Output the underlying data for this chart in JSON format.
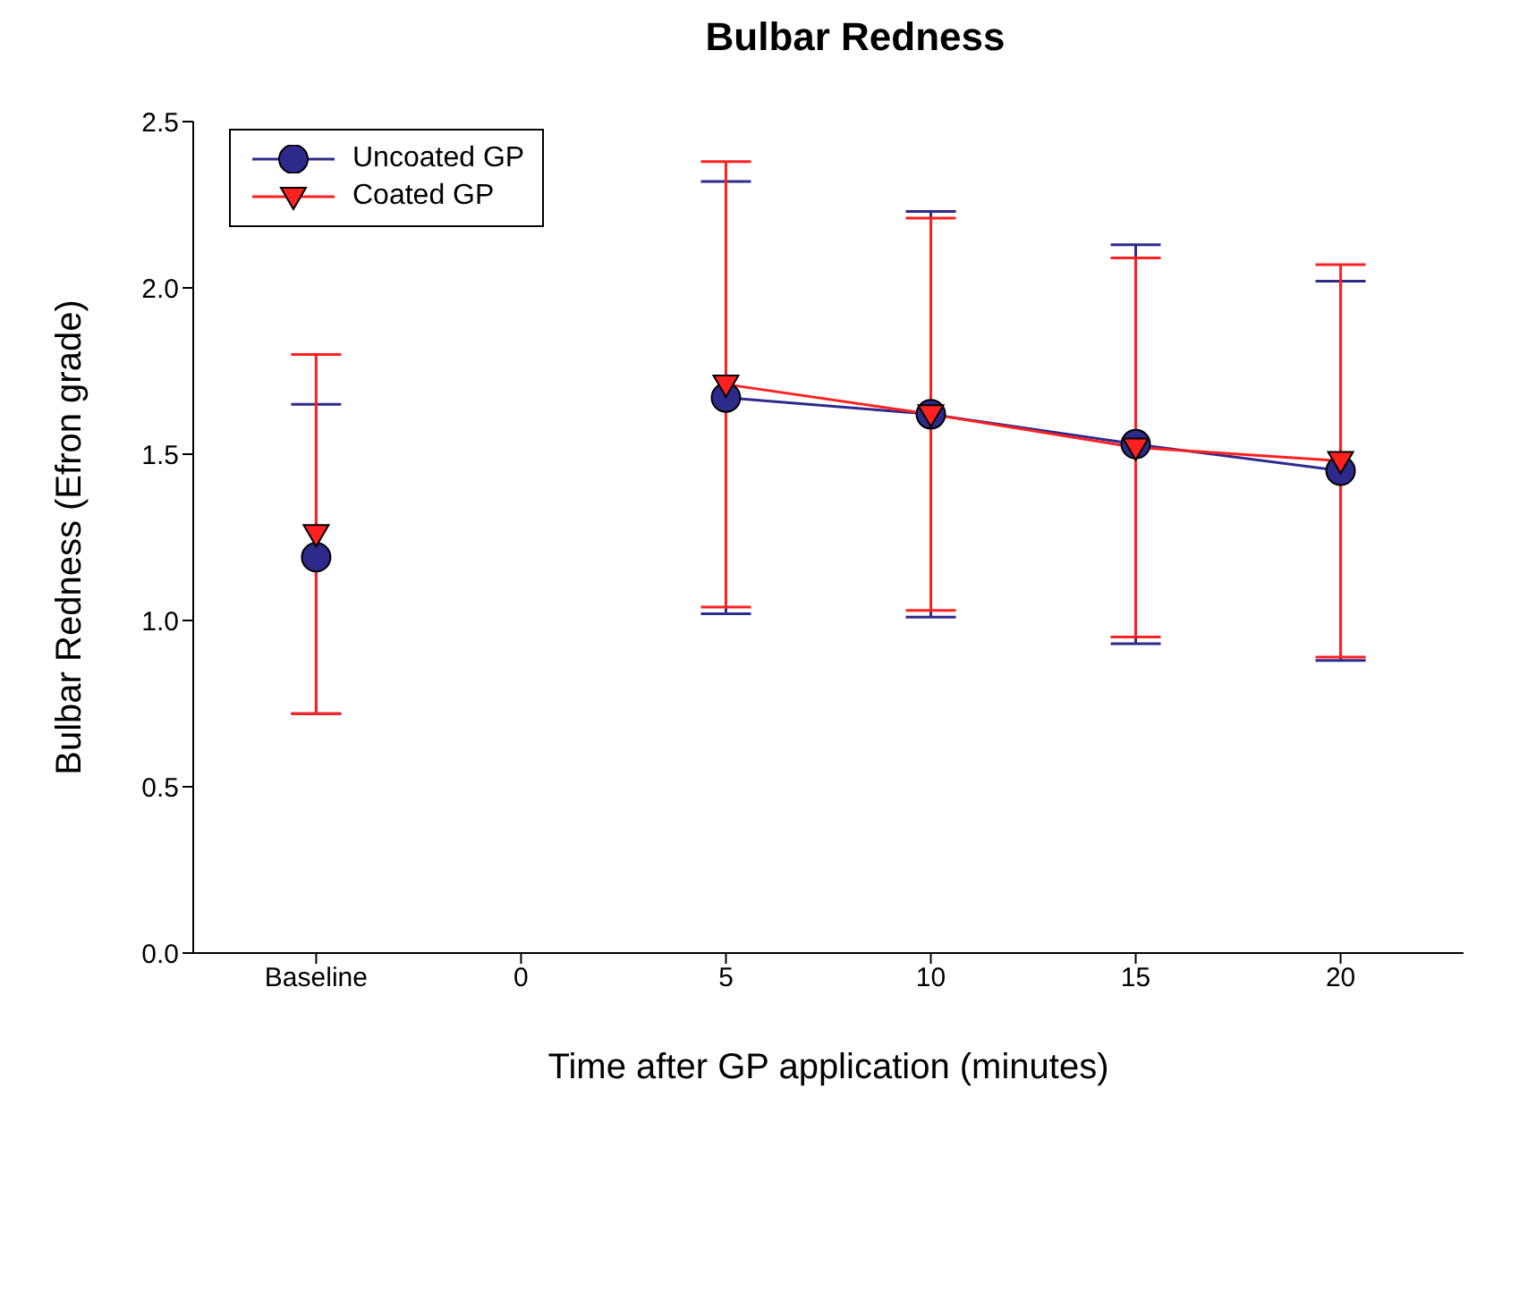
{
  "chart_data": {
    "type": "line",
    "title": "Bulbar Redness",
    "xlabel": "Time after GP application (minutes)",
    "ylabel": "Bulbar Redness (Efron grade)",
    "categories": [
      "Baseline",
      "0",
      "5",
      "10",
      "15",
      "20"
    ],
    "series": [
      {
        "name": "Uncoated GP",
        "color": "#2e2a8c",
        "marker": "circle",
        "values": [
          1.19,
          null,
          1.67,
          1.62,
          1.53,
          1.45
        ],
        "errors": [
          [
            0.72,
            1.65
          ],
          null,
          [
            1.02,
            2.32
          ],
          [
            1.01,
            2.23
          ],
          [
            0.93,
            2.13
          ],
          [
            0.88,
            2.02
          ]
        ]
      },
      {
        "name": "Coated GP",
        "color": "#ff2020",
        "marker": "triangle",
        "values": [
          1.26,
          null,
          1.71,
          1.62,
          1.52,
          1.48
        ],
        "errors": [
          [
            0.72,
            1.8
          ],
          null,
          [
            1.04,
            2.38
          ],
          [
            1.03,
            2.21
          ],
          [
            0.95,
            2.09
          ],
          [
            0.89,
            2.07
          ]
        ]
      }
    ],
    "ylim": [
      0,
      2.5
    ],
    "yticks": [
      {
        "value": 0,
        "label": "0.0"
      },
      {
        "value": 0.5,
        "label": "0.5"
      },
      {
        "value": 1,
        "label": "1.0"
      },
      {
        "value": 1.5,
        "label": "1.5"
      },
      {
        "value": 2,
        "label": "2.0"
      },
      {
        "value": 2.5,
        "label": "2.5"
      }
    ],
    "grid": false,
    "legend": "top left"
  }
}
